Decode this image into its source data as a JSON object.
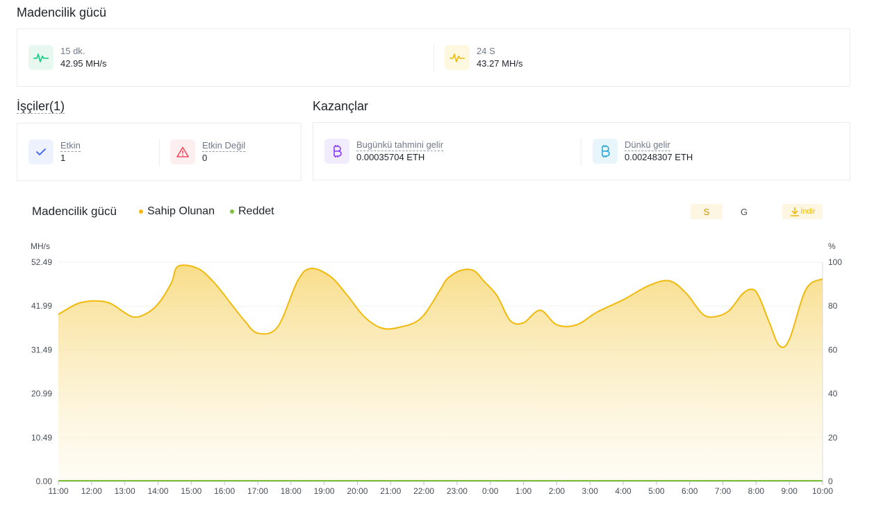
{
  "hashrate_section": {
    "title": "Madencilik gücü",
    "items": [
      {
        "label": "15 dk.",
        "value": "42.95 MH/s",
        "icon": "pulse-icon",
        "color": "#0ecb81"
      },
      {
        "label": "24 S",
        "value": "43.27 MH/s",
        "icon": "pulse-icon",
        "color": "#f0b90b"
      }
    ]
  },
  "workers_section": {
    "title": "İşçiler(1)",
    "items": [
      {
        "label": "Etkin",
        "value": "1",
        "icon": "check-icon",
        "color": "#3861fb"
      },
      {
        "label": "Etkin Değil",
        "value": "0",
        "icon": "warning-icon",
        "color": "#f6465d"
      }
    ]
  },
  "earnings_section": {
    "title": "Kazançlar",
    "items": [
      {
        "label": "Bugünkü tahmini gelir",
        "value": "0.00035704 ETH",
        "icon": "bitcoin-icon",
        "color": "#8b3cf7"
      },
      {
        "label": "Dünkü gelir",
        "value": "0.00248307 ETH",
        "icon": "bitcoin-icon",
        "color": "#2aa8d8"
      }
    ]
  },
  "chart_header": {
    "title": "Madencilik gücü",
    "legend": [
      {
        "label": "Sahip Olunan",
        "color": "#f0b90b"
      },
      {
        "label": "Reddet",
        "color": "#7cbf3a"
      }
    ],
    "toggles": [
      {
        "label": "S",
        "active": true
      },
      {
        "label": "G",
        "active": false
      }
    ],
    "download_label": "İndir"
  },
  "chart_data": {
    "type": "area",
    "left_unit": "MH/s",
    "right_unit": "%",
    "y_ticks": [
      "0.00",
      "10.49",
      "20.99",
      "31.49",
      "41.99",
      "52.49"
    ],
    "y_right_ticks": [
      "0",
      "20",
      "40",
      "60",
      "80",
      "100"
    ],
    "ylim": [
      0,
      52.49
    ],
    "x_labels": [
      "11:00",
      "12:00",
      "13:00",
      "14:00",
      "15:00",
      "16:00",
      "17:00",
      "18:00",
      "19:00",
      "20:00",
      "21:00",
      "22:00",
      "23:00",
      "0:00",
      "1:00",
      "2:00",
      "3:00",
      "4:00",
      "5:00",
      "6:00",
      "7:00",
      "8:00",
      "9:00",
      "10:00"
    ],
    "series": [
      {
        "name": "Sahip Olunan",
        "color": "#f0b90b",
        "x": [
          0,
          0.5,
          0.8,
          1.2,
          1.6,
          2.2,
          2.6,
          3.0,
          3.4,
          3.6,
          4.2,
          4.7,
          5.2,
          5.6,
          6.0,
          6.6,
          7.2,
          7.6,
          8.2,
          8.7,
          9.2,
          9.7,
          10.2,
          10.9,
          11.5,
          11.7,
          12.1,
          12.5,
          12.8,
          13.2,
          13.6,
          14.0,
          14.5,
          15.0,
          15.6,
          16.2,
          17.0,
          17.8,
          18.4,
          18.9,
          19.4,
          19.8,
          20.2,
          20.6,
          20.9,
          21.1,
          21.4,
          21.7,
          22.0,
          22.5,
          23.0
        ],
        "y": [
          40.0,
          42.3,
          43.0,
          43.2,
          42.5,
          39.5,
          40.0,
          42.5,
          47.5,
          51.5,
          51.0,
          47.5,
          42.5,
          38.5,
          35.5,
          37.0,
          48.0,
          51.0,
          49.0,
          44.5,
          39.5,
          36.8,
          36.8,
          39.0,
          46.0,
          48.5,
          50.5,
          50.5,
          48.0,
          44.5,
          38.5,
          38.0,
          41.0,
          37.5,
          37.5,
          40.5,
          43.5,
          47.0,
          48.0,
          45.0,
          40.0,
          39.5,
          41.0,
          45.0,
          46.0,
          44.0,
          38.0,
          32.5,
          34.0,
          46.0,
          48.5
        ]
      },
      {
        "name": "Reddet",
        "color": "#7cbf3a",
        "x": [
          0,
          23
        ],
        "y": [
          0,
          0
        ]
      }
    ]
  }
}
